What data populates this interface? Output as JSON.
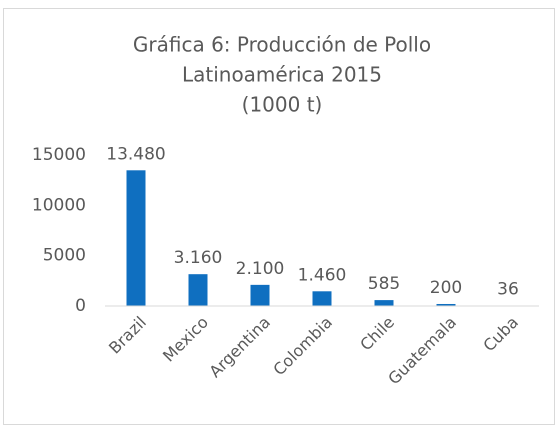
{
  "chart_data": {
    "type": "bar",
    "title": [
      "Gráfica 6: Producción de Pollo",
      "Latinoamérica 2015",
      "(1000 t)"
    ],
    "categories": [
      "Brazil",
      "Mexico",
      "Argentina",
      "Colombia",
      "Chile",
      "Guatemala",
      "Cuba"
    ],
    "values": [
      13480,
      3160,
      2100,
      1460,
      585,
      200,
      36
    ],
    "value_labels": [
      "13.480",
      "3.160",
      "2.100",
      "1.460",
      "585",
      "200",
      "36"
    ],
    "color": "#0f6fc0",
    "ylim": [
      0,
      15000
    ],
    "yticks": [
      0,
      5000,
      10000,
      15000
    ],
    "grid": false
  }
}
